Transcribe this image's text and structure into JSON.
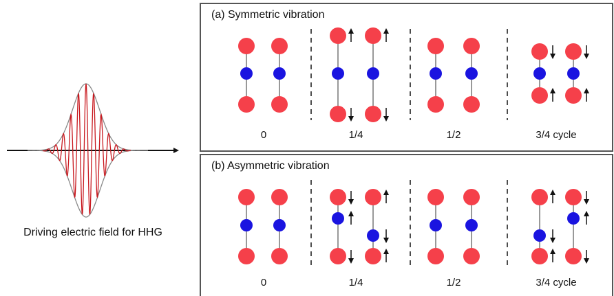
{
  "pulse": {
    "caption": "Driving electric field for HHG"
  },
  "panels": [
    {
      "title": "(a) Symmetric vibration",
      "labels": [
        "0",
        "1/4",
        "1/2",
        "3/4 cycle"
      ]
    },
    {
      "title": "(b) Asymmetric vibration",
      "labels": [
        "0",
        "1/4",
        "1/2",
        "3/4 cycle"
      ]
    }
  ]
}
